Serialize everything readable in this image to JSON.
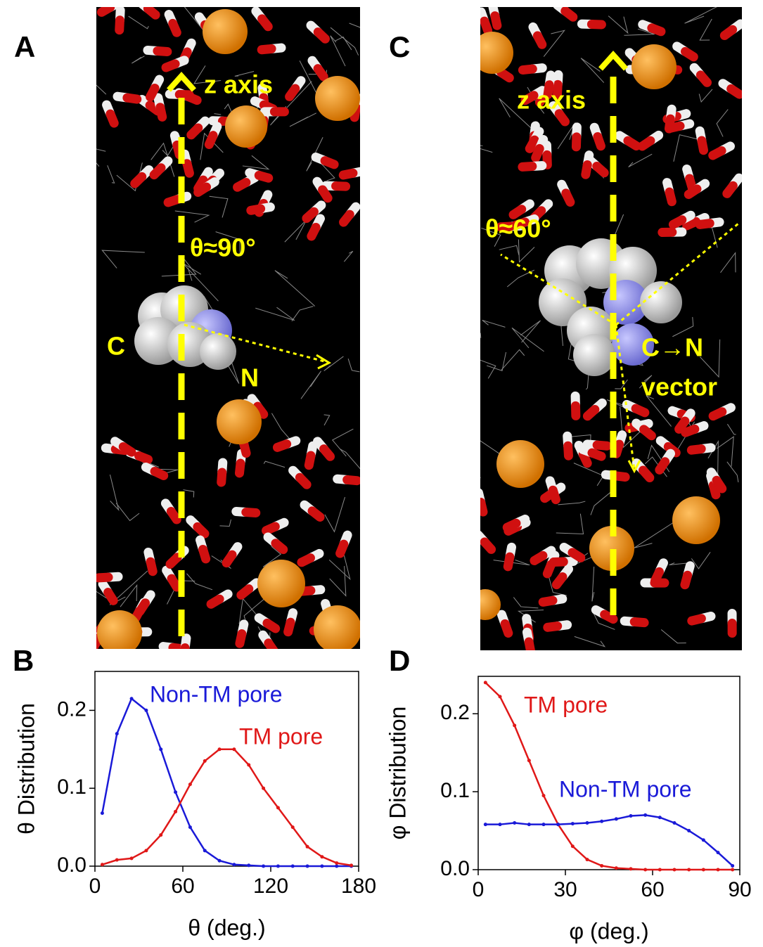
{
  "panels": {
    "a": {
      "letter": "A",
      "axis_label": "z axis",
      "angle_label": "θ≈90°",
      "c_label": "C",
      "n_label": "N"
    },
    "b": {
      "letter": "B"
    },
    "c": {
      "letter": "C",
      "axis_label": "z axis",
      "angle_label": "θ≈60°",
      "vector_label": [
        "C→N",
        "vector"
      ]
    },
    "d": {
      "letter": "D"
    }
  },
  "chart_data": [
    {
      "type": "line",
      "x_label": "θ (deg.)",
      "y_label": "θ Distribution",
      "x": [
        5,
        15,
        25,
        35,
        45,
        55,
        65,
        75,
        85,
        95,
        105,
        115,
        125,
        135,
        145,
        155,
        165,
        175
      ],
      "series": [
        {
          "name": "Non-TM pore",
          "color": "#1a1ad8",
          "values": [
            0.068,
            0.17,
            0.215,
            0.2,
            0.15,
            0.095,
            0.05,
            0.02,
            0.007,
            0.002,
            0.001,
            0,
            0,
            0,
            0,
            0,
            0,
            0
          ]
        },
        {
          "name": "TM pore",
          "color": "#e01818",
          "values": [
            0.002,
            0.008,
            0.01,
            0.02,
            0.04,
            0.07,
            0.105,
            0.135,
            0.15,
            0.15,
            0.13,
            0.1,
            0.075,
            0.05,
            0.025,
            0.012,
            0.004,
            0.001
          ]
        }
      ],
      "xlim": [
        0,
        180
      ],
      "xticks": [
        0,
        60,
        120,
        180
      ],
      "ylim": [
        0,
        0.25
      ],
      "yticks": [
        {
          "value": 0,
          "label": "0.0"
        },
        0.1,
        0.2
      ]
    },
    {
      "type": "line",
      "x_label": "φ (deg.)",
      "y_label": "φ Distribution",
      "x": [
        2.5,
        7.5,
        12.5,
        17.5,
        22.5,
        27.5,
        32.5,
        37.5,
        42.5,
        47.5,
        52.5,
        57.5,
        62.5,
        67.5,
        72.5,
        77.5,
        82.5,
        87.5
      ],
      "series": [
        {
          "name": "TM pore",
          "color": "#e01818",
          "values": [
            0.24,
            0.222,
            0.185,
            0.14,
            0.095,
            0.058,
            0.03,
            0.013,
            0.005,
            0.002,
            0.001,
            0,
            0,
            0,
            0,
            0,
            0,
            0
          ]
        },
        {
          "name": "Non-TM pore",
          "color": "#1a1ad8",
          "values": [
            0.058,
            0.058,
            0.06,
            0.058,
            0.058,
            0.058,
            0.059,
            0.06,
            0.062,
            0.065,
            0.069,
            0.07,
            0.067,
            0.06,
            0.05,
            0.038,
            0.022,
            0.005
          ]
        }
      ],
      "xlim": [
        0,
        90
      ],
      "xticks": [
        0,
        30,
        60,
        90
      ],
      "ylim": [
        0,
        0.248
      ],
      "yticks": [
        {
          "value": 0,
          "label": "0.0"
        },
        0.1,
        0.2
      ]
    }
  ]
}
